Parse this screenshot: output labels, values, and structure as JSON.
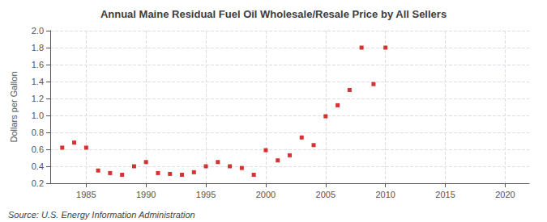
{
  "chart_data": {
    "type": "scatter",
    "title": "Annual Maine Residual Fuel Oil Wholesale/Resale Price by All Sellers",
    "ylabel": "Dollars per Gallon",
    "annotations": [
      "Source: U.S. Energy Information Administration"
    ],
    "x": [
      1983,
      1984,
      1985,
      1986,
      1987,
      1988,
      1989,
      1990,
      1991,
      1992,
      1993,
      1994,
      1995,
      1996,
      1997,
      1998,
      1999,
      2000,
      2001,
      2002,
      2003,
      2004,
      2005,
      2006,
      2007,
      2008,
      2009,
      2010
    ],
    "values": [
      0.62,
      0.68,
      0.62,
      0.35,
      0.32,
      0.3,
      0.4,
      0.45,
      0.32,
      0.31,
      0.3,
      0.33,
      0.4,
      0.45,
      0.4,
      0.38,
      0.3,
      0.59,
      0.47,
      0.53,
      0.74,
      0.65,
      0.99,
      1.12,
      1.3,
      1.8,
      1.37,
      1.8
    ],
    "color": "#cc0000",
    "marker": "square",
    "xlim": [
      1982,
      2022
    ],
    "xticks": [
      1985,
      1990,
      1995,
      2000,
      2005,
      2010,
      2015,
      2020
    ],
    "ylim": [
      0.2,
      2.0
    ],
    "yticks": [
      0.2,
      0.4,
      0.6,
      0.8,
      {
        "value": 1.0,
        "label": "1.0"
      },
      1.2,
      1.4,
      1.6,
      1.8,
      {
        "value": 2.0,
        "label": "2.0"
      }
    ],
    "grid": true
  }
}
